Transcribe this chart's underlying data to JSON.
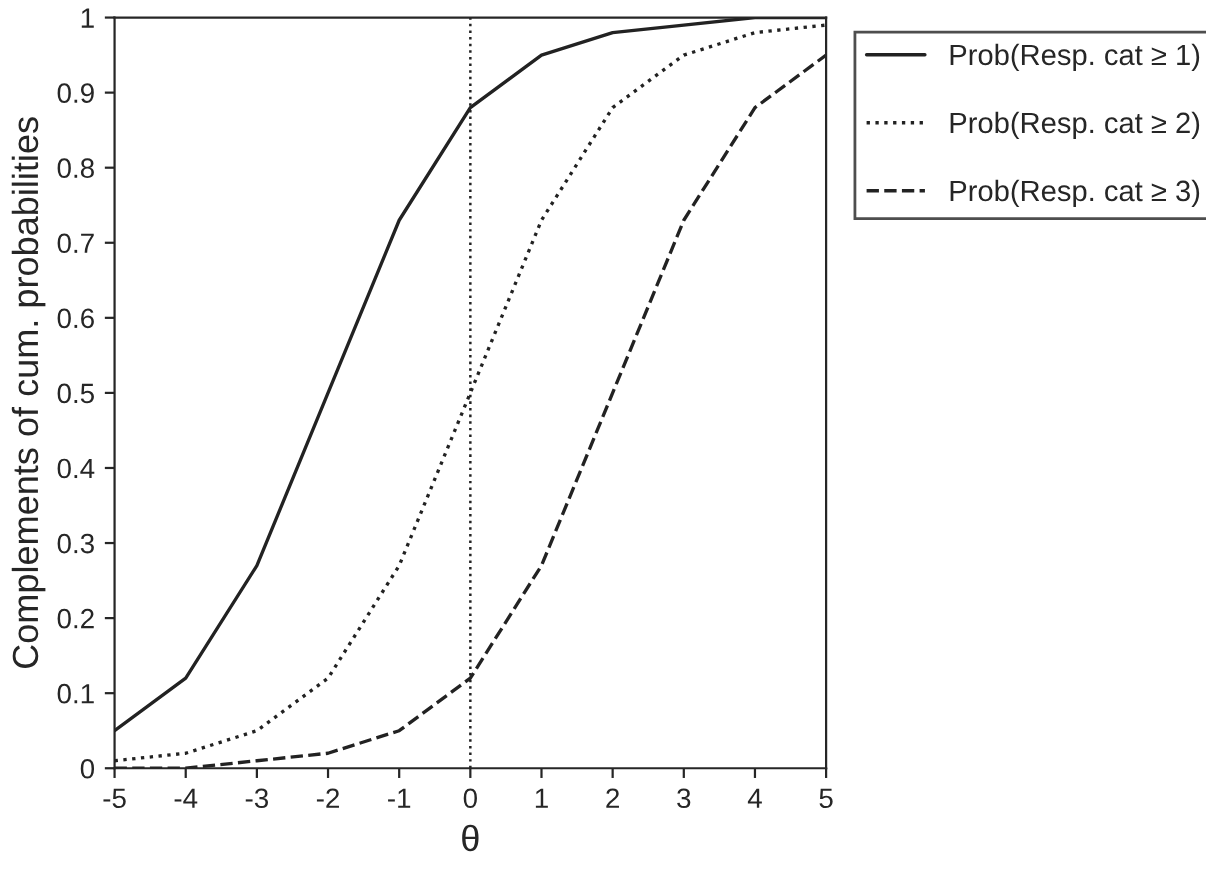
{
  "chart_data": {
    "type": "line",
    "xlabel": "θ",
    "ylabel": "Complements of cum. probabilities",
    "x": [
      -5,
      -4,
      -3,
      -2,
      -1,
      0,
      1,
      2,
      3,
      4,
      5
    ],
    "series": [
      {
        "name": "Prob(Resp. cat ≥ 1)",
        "color": "#222222",
        "line_style": "solid",
        "values": [
          0.05,
          0.12,
          0.27,
          0.5,
          0.73,
          0.88,
          0.95,
          0.98,
          0.99,
          1.0,
          1.0
        ]
      },
      {
        "name": "Prob(Resp. cat ≥ 2)",
        "color": "#222222",
        "line_style": "dotted",
        "values": [
          0.01,
          0.02,
          0.05,
          0.12,
          0.27,
          0.5,
          0.73,
          0.88,
          0.95,
          0.98,
          0.99
        ]
      },
      {
        "name": "Prob(Resp. cat ≥ 3)",
        "color": "#222222",
        "line_style": "dashed",
        "values": [
          0.0,
          0.0,
          0.01,
          0.02,
          0.05,
          0.12,
          0.27,
          0.5,
          0.73,
          0.88,
          0.95
        ]
      }
    ],
    "xlim": [
      -5,
      5
    ],
    "ylim": [
      0,
      1
    ],
    "xticks": [
      -5,
      -4,
      -3,
      -2,
      -1,
      0,
      1,
      2,
      3,
      4,
      5
    ],
    "yticks": [
      0,
      0.1,
      0.2,
      0.3,
      0.4,
      0.5,
      0.6,
      0.7,
      0.8,
      0.9,
      1
    ],
    "ref_lines": [
      {
        "axis": "x",
        "value": 0,
        "color": "#222222",
        "line_style": "dotted"
      }
    ],
    "grid": false,
    "legend": "top right",
    "marker": "none"
  }
}
